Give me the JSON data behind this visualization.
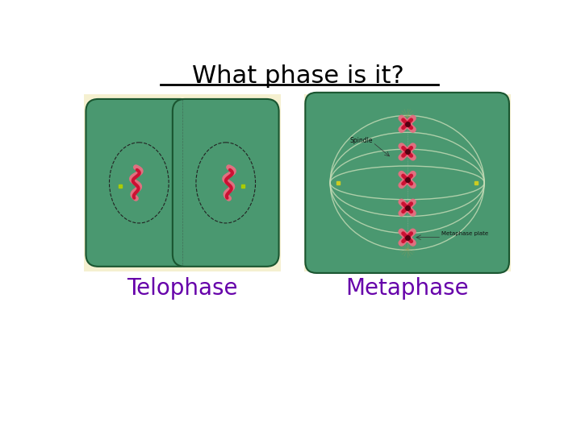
{
  "title": "What phase is it?",
  "title_fontsize": 22,
  "title_color": "#000000",
  "label_left": "Telophase",
  "label_right": "Metaphase",
  "label_color": "#6600aa",
  "label_fontsize": 20,
  "bg_color": "#ffffff",
  "cell_bg": "#f5f0d0",
  "cell_green": "#4a9870",
  "chromosome_red": "#cc1133",
  "chromosome_pink": "#e07080",
  "spindle_color": "#a8c898"
}
